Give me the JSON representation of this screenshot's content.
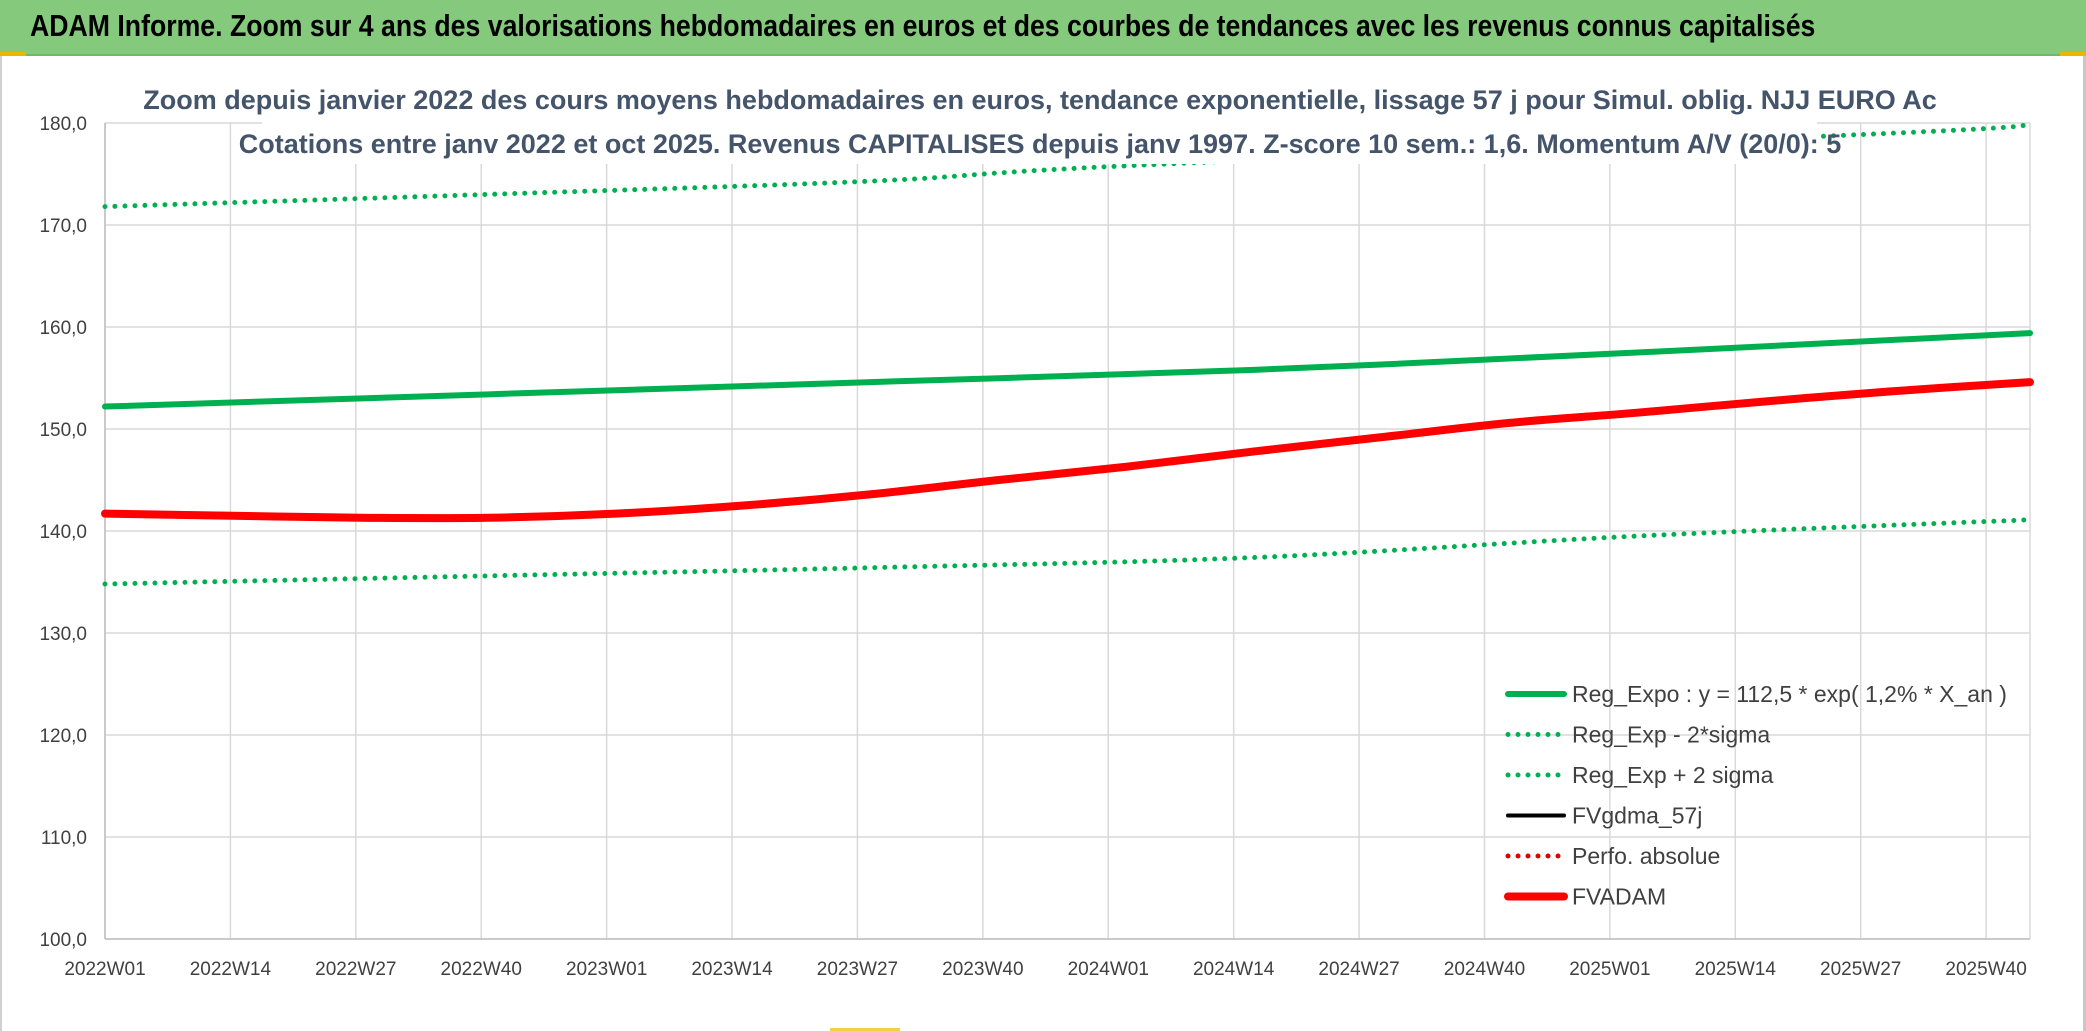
{
  "header": {
    "title": "ADAM Informe. Zoom sur 4 ans des valorisations hebdomadaires en euros et des courbes de tendances avec les revenus connus capitalisés"
  },
  "chart_data": {
    "type": "line",
    "title_line1": "Zoom depuis janvier 2022 des cours moyens hebdomadaires en euros, tendance exponentielle, lissage 57 j pour Simul. oblig. NJJ EURO Ac",
    "title_line2": "Cotations entre janv 2022 et oct 2025. Revenus CAPITALISES depuis janv 1997. Z-score 10 sem.: 1,6. Momentum A/V (20/0): 5",
    "xlabel": "",
    "ylabel": "",
    "ylim": [
      100,
      180
    ],
    "y_ticks": [
      "100,0",
      "110,0",
      "120,0",
      "130,0",
      "140,0",
      "150,0",
      "160,0",
      "170,0",
      "180,0"
    ],
    "x_ticks": [
      "2022W01",
      "2022W14",
      "2022W27",
      "2022W40",
      "2023W01",
      "2023W14",
      "2023W27",
      "2023W40",
      "2024W01",
      "2024W14",
      "2024W27",
      "2024W40",
      "2025W01",
      "2025W14",
      "2025W27",
      "2025W40"
    ],
    "x_range_weeks": [
      0,
      196
    ],
    "grid": true,
    "legend_position": "bottom-right",
    "series": [
      {
        "name": "Reg_Expo : y = 112,5 * exp( 1,2% *  X_an )",
        "color": "#00b050",
        "style": "solid-thick",
        "points": [
          [
            0,
            152.2
          ],
          [
            39,
            153.4
          ],
          [
            78,
            154.6
          ],
          [
            117,
            155.8
          ],
          [
            156,
            157.5
          ],
          [
            196,
            159.4
          ]
        ]
      },
      {
        "name": "Reg_Exp - 2*sigma",
        "color": "#00b050",
        "style": "dotted",
        "points": [
          [
            0,
            134.8
          ],
          [
            39,
            135.6
          ],
          [
            78,
            136.4
          ],
          [
            117,
            137.4
          ],
          [
            156,
            139.5
          ],
          [
            196,
            141.1
          ]
        ]
      },
      {
        "name": "Reg_Exp + 2 sigma",
        "color": "#00b050",
        "style": "dotted",
        "points": [
          [
            0,
            171.8
          ],
          [
            39,
            173.0
          ],
          [
            78,
            174.3
          ],
          [
            104,
            175.8
          ],
          [
            182,
            179.0
          ],
          [
            196,
            179.8
          ]
        ]
      },
      {
        "name": "FVgdma_57j",
        "color": "#000000",
        "style": "solid",
        "points": []
      },
      {
        "name": "Perfo. absolue",
        "color": "#e00000",
        "style": "dotted",
        "points": []
      },
      {
        "name": "FVADAM",
        "color": "#ff0000",
        "style": "solid-thick",
        "points": [
          [
            0,
            141.7
          ],
          [
            13,
            141.5
          ],
          [
            26,
            141.3
          ],
          [
            39,
            141.3
          ],
          [
            52,
            141.7
          ],
          [
            65,
            142.5
          ],
          [
            78,
            143.6
          ],
          [
            91,
            145.0
          ],
          [
            104,
            146.3
          ],
          [
            117,
            147.8
          ],
          [
            130,
            149.2
          ],
          [
            143,
            150.6
          ],
          [
            156,
            151.6
          ],
          [
            169,
            152.7
          ],
          [
            182,
            153.7
          ],
          [
            196,
            154.6
          ]
        ]
      }
    ]
  }
}
